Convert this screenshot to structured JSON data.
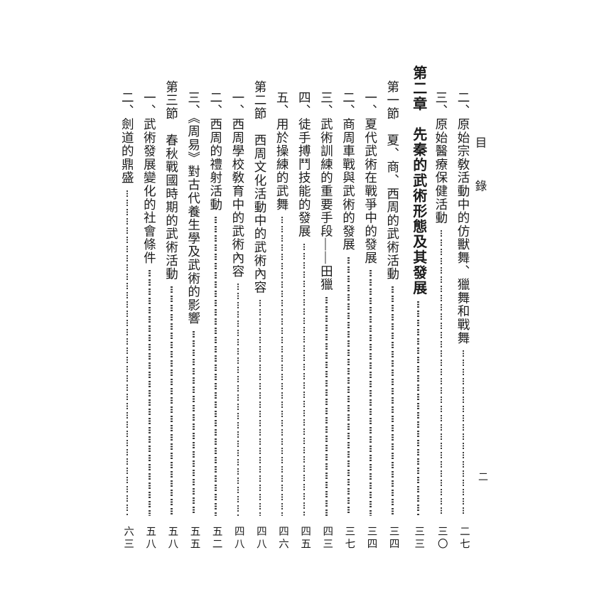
{
  "page": {
    "running_head": "目　錄",
    "folio": "二"
  },
  "toc": {
    "entries": [
      {
        "level": "item",
        "title": "二、原始宗敎活動中的仿獸舞、獵舞和戰舞",
        "page": "二七"
      },
      {
        "level": "item",
        "title": "三、原始醫療保健活動",
        "page": "三〇"
      },
      {
        "level": "chapter",
        "title": "第二章　先秦的武術形態及其發展",
        "page": "三三"
      },
      {
        "level": "section",
        "title": "第一節　夏、商、西周的武術活動",
        "page": "三四"
      },
      {
        "level": "item",
        "title": "一、夏代武術在戰爭中的發展",
        "page": "三四"
      },
      {
        "level": "item",
        "title": "二、商周車戰與武術的發展",
        "page": "三七"
      },
      {
        "level": "item",
        "title": "三、武術訓練的重要手段——田獵",
        "page": "四三"
      },
      {
        "level": "item",
        "title": "四、徒手搏鬥技能的發展",
        "page": "四五"
      },
      {
        "level": "item",
        "title": "五、用於操練的武舞",
        "page": "四六"
      },
      {
        "level": "section",
        "title": "第二節　西周文化活動中的武術內容",
        "page": "四八"
      },
      {
        "level": "item",
        "title": "一、西周學校敎育中的武術內容",
        "page": "四八"
      },
      {
        "level": "item",
        "title": "二、西周的禮射活動",
        "page": "五二"
      },
      {
        "level": "item",
        "title": "三、《周易》對古代養生學及武術的影響",
        "page": "五五"
      },
      {
        "level": "section",
        "title": "第三節　春秋戰國時期的武術活動",
        "page": "五八"
      },
      {
        "level": "item",
        "title": "一、武術發展變化的社會條件",
        "page": "五八"
      },
      {
        "level": "item",
        "title": "二、劍道的鼎盛",
        "page": "六三"
      }
    ]
  }
}
